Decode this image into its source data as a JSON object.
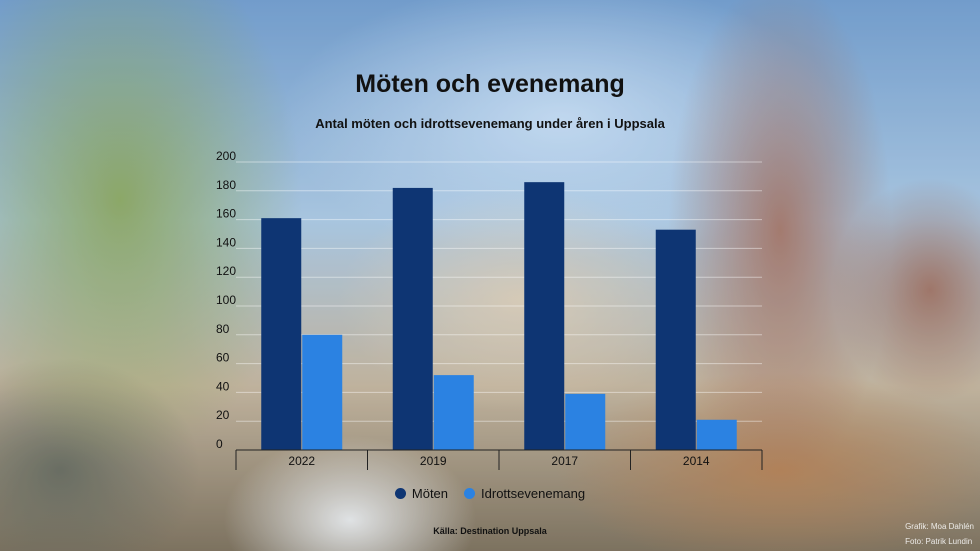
{
  "chart_data": {
    "type": "bar",
    "title": "Möten och evenemang",
    "subtitle": "Antal möten och idrottsevenemang under åren i Uppsala",
    "categories": [
      "2022",
      "2019",
      "2017",
      "2014"
    ],
    "series": [
      {
        "name": "Möten",
        "color": "#0e3573",
        "values": [
          161,
          182,
          186,
          153
        ]
      },
      {
        "name": "Idrottsevenemang",
        "color": "#2b82e2",
        "values": [
          80,
          52,
          39,
          21
        ]
      }
    ],
    "yticks": [
      0,
      20,
      40,
      60,
      80,
      100,
      120,
      140,
      160,
      180,
      200
    ],
    "ylim": [
      0,
      200
    ],
    "grid": true,
    "legend_position": "bottom-center",
    "source": "Källa: Destination Uppsala"
  },
  "credits": {
    "graphic": "Grafik: Moa Dahlén",
    "photo": "Foto: Patrik Lundin"
  }
}
